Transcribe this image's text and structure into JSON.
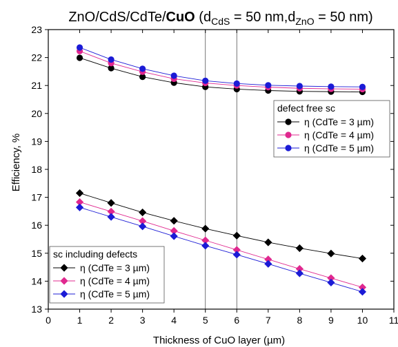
{
  "chart_data": {
    "type": "line",
    "title": {
      "parts": [
        {
          "text": "ZnO/CdS/CdTe/",
          "bold": false
        },
        {
          "text": "CuO",
          "bold": true
        },
        {
          "text": " (d",
          "bold": false
        },
        {
          "text": "CdS",
          "bold": false,
          "sub": true
        },
        {
          "text": " = 50 nm,d",
          "bold": false
        },
        {
          "text": "ZnO",
          "bold": false,
          "sub": true
        },
        {
          "text": " = 50 nm)",
          "bold": false
        }
      ]
    },
    "xlabel": "Thickness of CuO layer (µm)",
    "ylabel": "Efficiency, %",
    "xlim": [
      0,
      11
    ],
    "ylim": [
      13,
      23
    ],
    "xticks": [
      0,
      1,
      2,
      3,
      4,
      5,
      6,
      7,
      8,
      9,
      10,
      11
    ],
    "yticks": [
      13,
      14,
      15,
      16,
      17,
      18,
      19,
      20,
      21,
      22,
      23
    ],
    "vertical_gridlines_at": [
      5,
      6
    ],
    "x": [
      1,
      2,
      3,
      4,
      5,
      6,
      7,
      8,
      9,
      10
    ],
    "groups": [
      {
        "title": "defect free sc",
        "legend_position": "upper-right",
        "marker": "circle",
        "series": [
          {
            "name": "η (CdTe = 3 µm)",
            "color": "#000000",
            "values": [
              21.99,
              21.62,
              21.31,
              21.1,
              20.95,
              20.87,
              20.82,
              20.79,
              20.78,
              20.77
            ]
          },
          {
            "name": "η (CdTe = 4 µm)",
            "color": "#e0288f",
            "values": [
              22.23,
              21.8,
              21.49,
              21.24,
              21.09,
              21.0,
              20.94,
              20.9,
              20.88,
              20.87
            ]
          },
          {
            "name": "η (CdTe = 5 µm)",
            "color": "#1b1bd6",
            "values": [
              22.36,
              21.93,
              21.6,
              21.35,
              21.17,
              21.07,
              21.01,
              20.98,
              20.96,
              20.95
            ]
          }
        ]
      },
      {
        "title": "sc including defects",
        "legend_position": "lower-left",
        "marker": "diamond",
        "series": [
          {
            "name": "η (CdTe = 3 µm)",
            "color": "#000000",
            "values": [
              17.15,
              16.8,
              16.46,
              16.16,
              15.88,
              15.63,
              15.39,
              15.18,
              14.99,
              14.81
            ]
          },
          {
            "name": "η (CdTe = 4 µm)",
            "color": "#e0288f",
            "values": [
              16.83,
              16.49,
              16.15,
              15.8,
              15.46,
              15.12,
              14.78,
              14.44,
              14.11,
              13.78
            ]
          },
          {
            "name": "η (CdTe = 5 µm)",
            "color": "#1b1bd6",
            "values": [
              16.64,
              16.3,
              15.96,
              15.61,
              15.27,
              14.95,
              14.62,
              14.28,
              13.95,
              13.62
            ]
          }
        ]
      }
    ]
  }
}
